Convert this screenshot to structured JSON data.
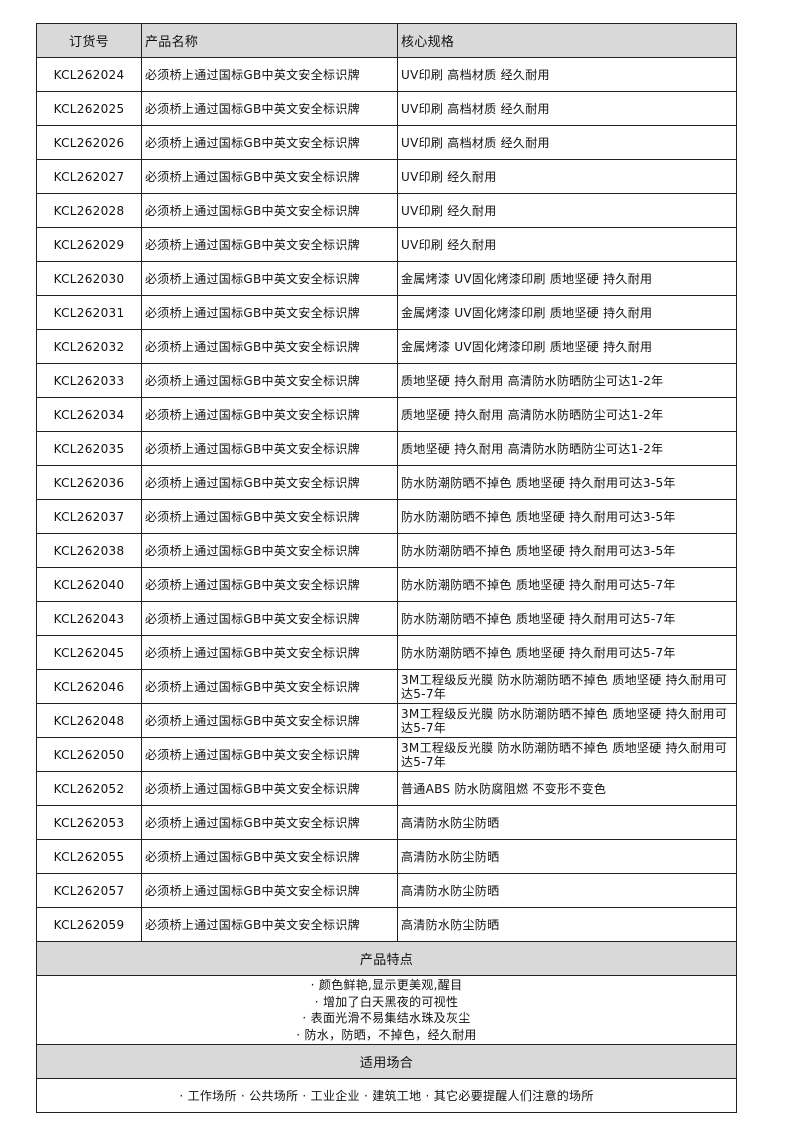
{
  "headers": {
    "order_no": "订货号",
    "name": "产品名称",
    "spec": "核心规格"
  },
  "rows": [
    {
      "order_no": "KCL262024",
      "name": "必须桥上通过国标GB中英文安全标识牌",
      "spec": "UV印刷 高档材质 经久耐用"
    },
    {
      "order_no": "KCL262025",
      "name": "必须桥上通过国标GB中英文安全标识牌",
      "spec": "UV印刷 高档材质 经久耐用"
    },
    {
      "order_no": "KCL262026",
      "name": "必须桥上通过国标GB中英文安全标识牌",
      "spec": "UV印刷 高档材质 经久耐用"
    },
    {
      "order_no": "KCL262027",
      "name": "必须桥上通过国标GB中英文安全标识牌",
      "spec": "UV印刷 经久耐用"
    },
    {
      "order_no": "KCL262028",
      "name": "必须桥上通过国标GB中英文安全标识牌",
      "spec": "UV印刷 经久耐用"
    },
    {
      "order_no": "KCL262029",
      "name": "必须桥上通过国标GB中英文安全标识牌",
      "spec": "UV印刷 经久耐用"
    },
    {
      "order_no": "KCL262030",
      "name": "必须桥上通过国标GB中英文安全标识牌",
      "spec": "金属烤漆 UV固化烤漆印刷 质地坚硬 持久耐用"
    },
    {
      "order_no": "KCL262031",
      "name": "必须桥上通过国标GB中英文安全标识牌",
      "spec": "金属烤漆 UV固化烤漆印刷 质地坚硬 持久耐用"
    },
    {
      "order_no": "KCL262032",
      "name": "必须桥上通过国标GB中英文安全标识牌",
      "spec": "金属烤漆 UV固化烤漆印刷 质地坚硬 持久耐用"
    },
    {
      "order_no": "KCL262033",
      "name": "必须桥上通过国标GB中英文安全标识牌",
      "spec": "质地坚硬 持久耐用 高清防水防晒防尘可达1-2年"
    },
    {
      "order_no": "KCL262034",
      "name": "必须桥上通过国标GB中英文安全标识牌",
      "spec": "质地坚硬 持久耐用 高清防水防晒防尘可达1-2年"
    },
    {
      "order_no": "KCL262035",
      "name": "必须桥上通过国标GB中英文安全标识牌",
      "spec": "质地坚硬 持久耐用 高清防水防晒防尘可达1-2年"
    },
    {
      "order_no": "KCL262036",
      "name": "必须桥上通过国标GB中英文安全标识牌",
      "spec": "防水防潮防晒不掉色 质地坚硬 持久耐用可达3-5年"
    },
    {
      "order_no": "KCL262037",
      "name": "必须桥上通过国标GB中英文安全标识牌",
      "spec": "防水防潮防晒不掉色 质地坚硬 持久耐用可达3-5年"
    },
    {
      "order_no": "KCL262038",
      "name": "必须桥上通过国标GB中英文安全标识牌",
      "spec": "防水防潮防晒不掉色 质地坚硬 持久耐用可达3-5年"
    },
    {
      "order_no": "KCL262040",
      "name": "必须桥上通过国标GB中英文安全标识牌",
      "spec": "防水防潮防晒不掉色 质地坚硬 持久耐用可达5-7年"
    },
    {
      "order_no": "KCL262043",
      "name": "必须桥上通过国标GB中英文安全标识牌",
      "spec": "防水防潮防晒不掉色 质地坚硬 持久耐用可达5-7年"
    },
    {
      "order_no": "KCL262045",
      "name": "必须桥上通过国标GB中英文安全标识牌",
      "spec": "防水防潮防晒不掉色 质地坚硬 持久耐用可达5-7年"
    },
    {
      "order_no": "KCL262046",
      "name": "必须桥上通过国标GB中英文安全标识牌",
      "spec": "3M工程级反光膜 防水防潮防晒不掉色 质地坚硬 持久耐用可达5-7年"
    },
    {
      "order_no": "KCL262048",
      "name": "必须桥上通过国标GB中英文安全标识牌",
      "spec": "3M工程级反光膜 防水防潮防晒不掉色 质地坚硬 持久耐用可达5-7年"
    },
    {
      "order_no": "KCL262050",
      "name": "必须桥上通过国标GB中英文安全标识牌",
      "spec": "3M工程级反光膜 防水防潮防晒不掉色 质地坚硬 持久耐用可达5-7年"
    },
    {
      "order_no": "KCL262052",
      "name": "必须桥上通过国标GB中英文安全标识牌",
      "spec": "普通ABS 防水防腐阻燃 不变形不变色"
    },
    {
      "order_no": "KCL262053",
      "name": "必须桥上通过国标GB中英文安全标识牌",
      "spec": "高清防水防尘防晒"
    },
    {
      "order_no": "KCL262055",
      "name": "必须桥上通过国标GB中英文安全标识牌",
      "spec": "高清防水防尘防晒"
    },
    {
      "order_no": "KCL262057",
      "name": "必须桥上通过国标GB中英文安全标识牌",
      "spec": "高清防水防尘防晒"
    },
    {
      "order_no": "KCL262059",
      "name": "必须桥上通过国标GB中英文安全标识牌",
      "spec": "高清防水防尘防晒"
    }
  ],
  "features": {
    "title": "产品特点",
    "items": [
      "· 颜色鲜艳,显示更美观,醒目",
      "· 增加了白天黑夜的可视性",
      "· 表面光滑不易集结水珠及灰尘",
      "· 防水，防晒，不掉色，经久耐用"
    ]
  },
  "usage": {
    "title": "适用场合",
    "text": "· 工作场所 · 公共场所 · 工业企业 · 建筑工地 · 其它必要提醒人们注意的场所"
  },
  "colors": {
    "header_bg": "#d9d9d9",
    "border": "#222222"
  }
}
